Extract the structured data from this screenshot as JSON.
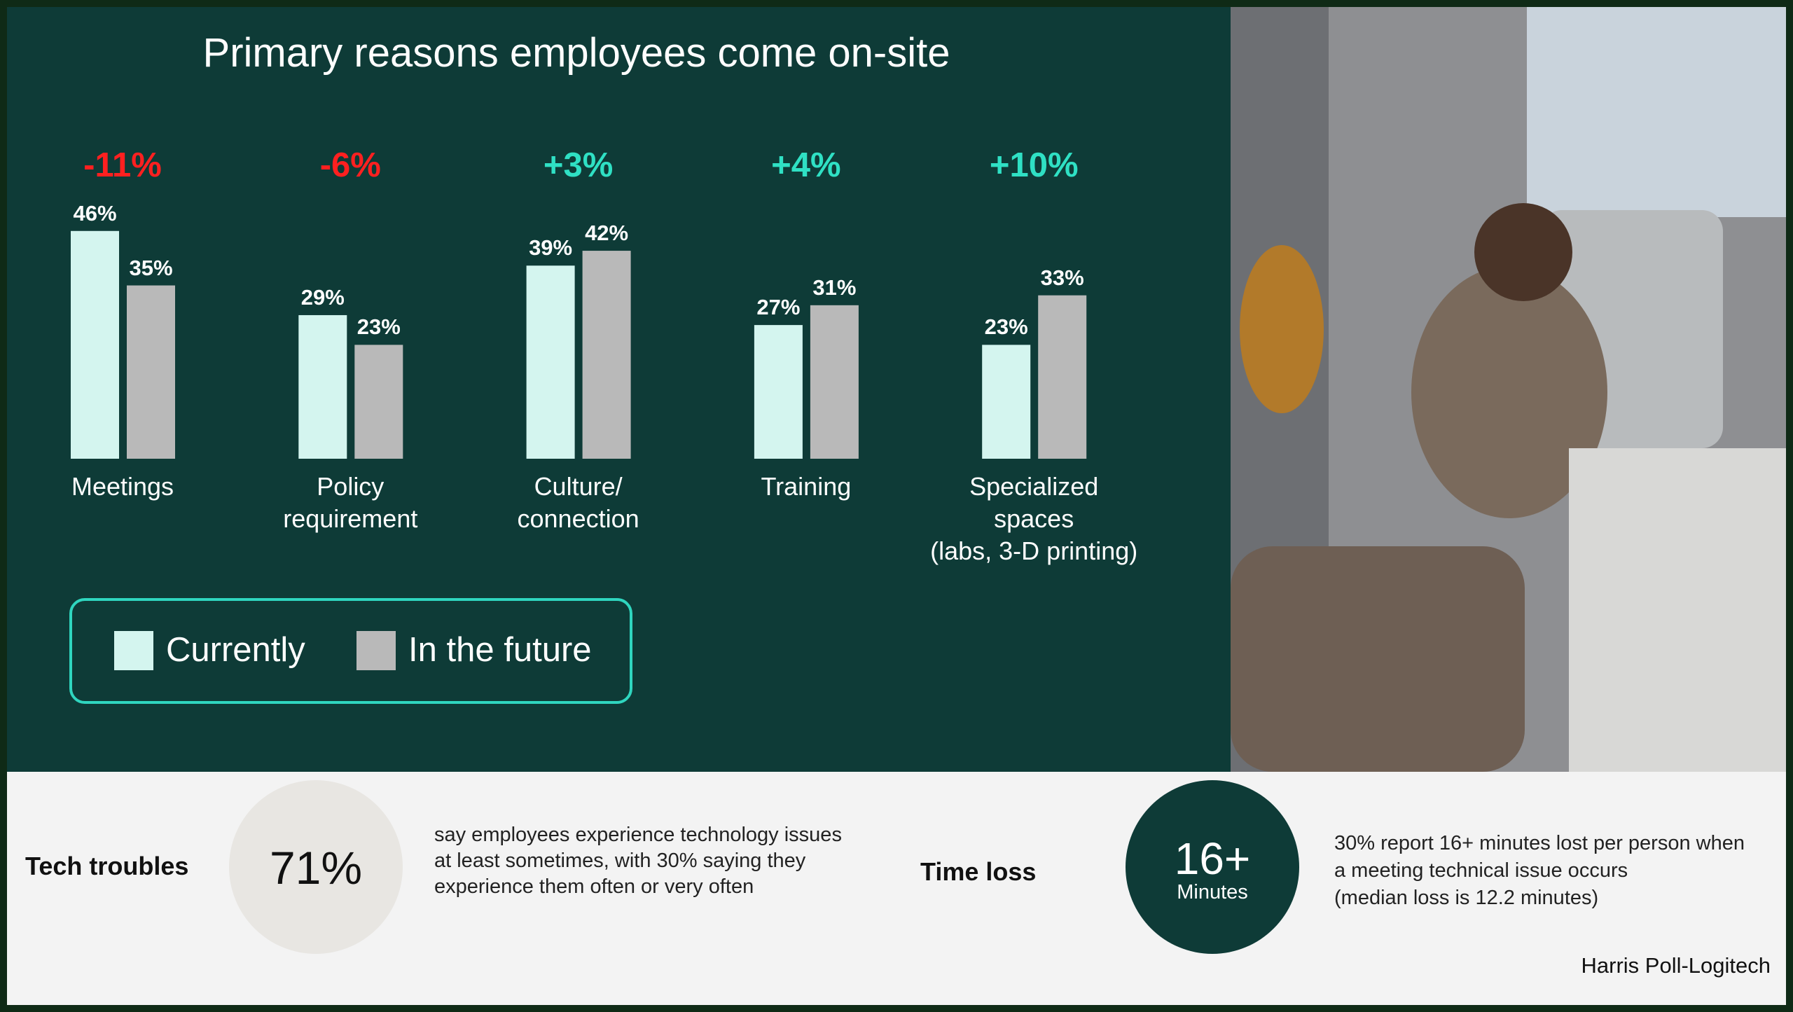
{
  "chart_data": {
    "type": "bar",
    "title": "Primary reasons employees come on-site",
    "categories": [
      "Meetings",
      "Policy\nrequirement",
      "Culture/\nconnection",
      "Training",
      "Specialized\nspaces\n(labs, 3-D printing)"
    ],
    "series": [
      {
        "name": "Currently",
        "color": "#d4f5ef",
        "values": [
          46,
          29,
          39,
          27,
          23
        ],
        "value_labels": [
          "46%",
          "29%",
          "39%",
          "27%",
          "23%"
        ]
      },
      {
        "name": "In the future",
        "color": "#b9b9b9",
        "values": [
          35,
          23,
          42,
          31,
          33
        ],
        "value_labels": [
          "35%",
          "23%",
          "42%",
          "31%",
          "33%"
        ]
      }
    ],
    "annotations": [
      {
        "text": "-11%",
        "color": "#ff2020"
      },
      {
        "text": "-6%",
        "color": "#ff2020"
      },
      {
        "text": "+3%",
        "color": "#2fe0c4"
      },
      {
        "text": "+4%",
        "color": "#2fe0c4"
      },
      {
        "text": "+10%",
        "color": "#2fe0c4"
      }
    ]
  },
  "footer": {
    "tech_troubles": {
      "label": "Tech troubles",
      "stat": "71%",
      "description": "say employees experience technology issues\nat least sometimes, with 30% saying they\nexperience them often or very often"
    },
    "time_loss": {
      "label": "Time loss",
      "stat": "16+",
      "stat_unit": "Minutes",
      "description": "30% report 16+ minutes lost per person when\na meeting technical issue occurs\n(median loss is 12.2 minutes)"
    },
    "source": "Harris Poll-Logitech"
  }
}
